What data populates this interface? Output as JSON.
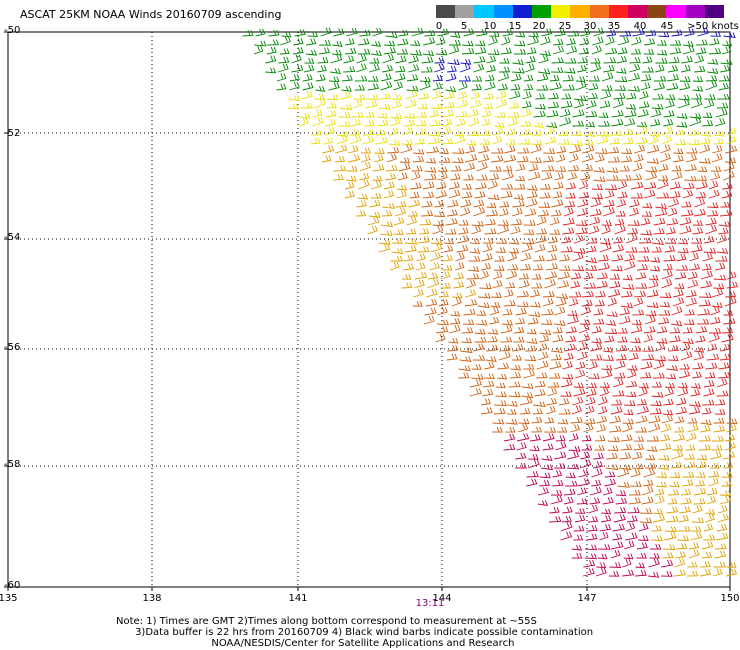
{
  "title": "ASCAT 25KM NOAA Winds 20160709 ascending",
  "legend": {
    "labels": [
      "0",
      "5",
      "10",
      "15",
      "20",
      "25",
      "30",
      "35",
      "40",
      "45",
      ">50 knots"
    ],
    "colors": [
      "#4a4a4a",
      "#a0a0a0",
      "#00c8ff",
      "#0090ff",
      "#1020d0",
      "#00a000",
      "#f0f000",
      "#ffb000",
      "#f07020",
      "#ff2020",
      "#d00060",
      "#8b4513",
      "#ff00ff",
      "#a000c0",
      "#500080"
    ]
  },
  "axes": {
    "lat_labels": [
      "-50",
      "-52",
      "-54",
      "-56",
      "-58",
      "-60"
    ],
    "lon_labels": [
      "135",
      "138",
      "141",
      "144",
      "147",
      "150"
    ]
  },
  "timestamp": "13:11",
  "notes": [
    "Note: 1) Times are GMT 2)Times along bottom correspond to measurement at ~55S",
    "      3)Data buffer is 22 hrs from 20160709 4) Black wind barbs indicate possible contamination",
    "                              NOAA/NESDIS/Center for Satellite Applications and Research"
  ],
  "barb_colors": {
    "blue": "#1010c0",
    "green": "#008800",
    "yellow": "#e8e000",
    "gold": "#e0a000",
    "orange": "#d06010",
    "red": "#e02020",
    "magenta": "#c00050"
  }
}
